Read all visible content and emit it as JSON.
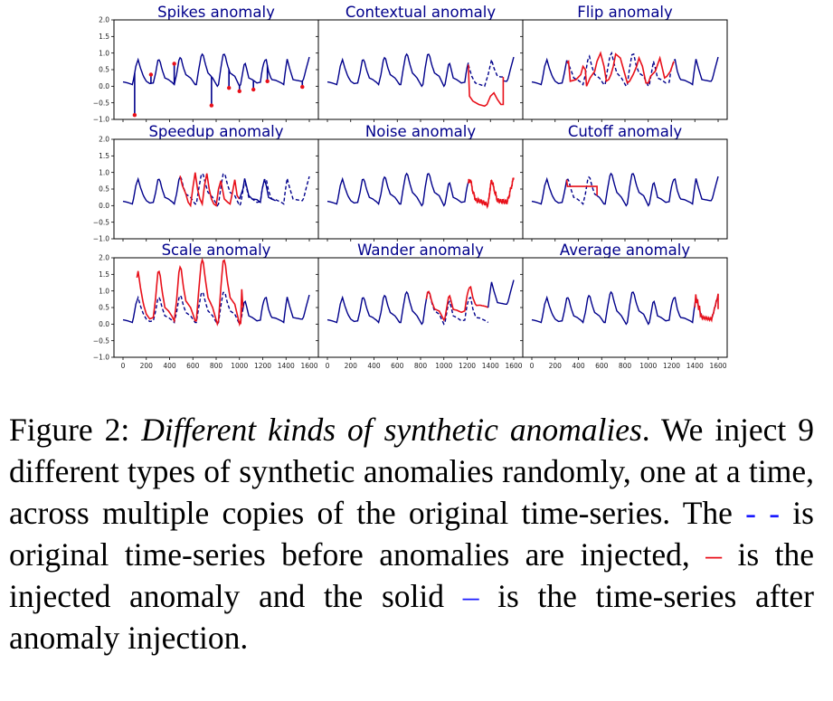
{
  "chart_data": {
    "type": "line",
    "layout": "3x3 subplot grid, shared axes",
    "xlim": [
      0,
      1600
    ],
    "ylim": [
      -1.0,
      2.0
    ],
    "xticks": [
      0,
      200,
      400,
      600,
      800,
      1000,
      1200,
      1400,
      1600
    ],
    "xtick_labels": [
      "0",
      "200",
      "400",
      "600",
      "800",
      "1000",
      "1200",
      "1400",
      "1600"
    ],
    "yticks": [
      2.0,
      1.5,
      1.0,
      0.5,
      0.0,
      -0.5,
      -1.0
    ],
    "ytick_labels": [
      "2.0",
      "1.5",
      "1.0",
      "0.5",
      "0.0",
      "−0.5",
      "−1.0"
    ],
    "grid": false,
    "colors": {
      "original_dashed": "#00008b",
      "after_injection_solid": "#00008b",
      "injected_anomaly": "#e8101a",
      "title": "#00008b"
    },
    "base_series": {
      "x": [
        0,
        40,
        80,
        90,
        110,
        130,
        150,
        175,
        200,
        230,
        260,
        280,
        300,
        315,
        335,
        360,
        390,
        420,
        440,
        460,
        480,
        495,
        515,
        540,
        580,
        620,
        630,
        650,
        670,
        685,
        705,
        730,
        770,
        810,
        820,
        840,
        860,
        875,
        895,
        920,
        960,
        1000,
        1010,
        1030,
        1045,
        1060,
        1080,
        1110,
        1150,
        1180,
        1195,
        1215,
        1230,
        1250,
        1275,
        1310,
        1360,
        1380,
        1395,
        1410,
        1430,
        1460,
        1530,
        1545,
        1575,
        1600
      ],
      "y": [
        0.13,
        0.1,
        0.05,
        0.2,
        0.6,
        0.8,
        0.55,
        0.3,
        0.15,
        0.08,
        0.1,
        0.4,
        0.78,
        0.8,
        0.5,
        0.25,
        0.2,
        0.12,
        0.05,
        0.35,
        0.78,
        0.9,
        0.6,
        0.35,
        0.25,
        0.05,
        0.05,
        0.5,
        0.9,
        1.0,
        0.7,
        0.4,
        0.25,
        0.0,
        0.05,
        0.55,
        0.95,
        0.97,
        0.65,
        0.4,
        0.3,
        0.0,
        0.05,
        0.45,
        0.75,
        0.55,
        0.25,
        0.2,
        0.1,
        0.12,
        0.5,
        0.78,
        0.8,
        0.45,
        0.2,
        0.18,
        0.1,
        0.05,
        0.5,
        0.82,
        0.55,
        0.2,
        0.15,
        0.15,
        0.55,
        0.88
      ]
    },
    "panels": [
      {
        "title": "Spikes anomaly",
        "show_yticks": true,
        "show_xticks": false,
        "spikes": [
          [
            100,
            -0.87
          ],
          [
            240,
            0.35
          ],
          [
            440,
            0.68
          ],
          [
            760,
            -0.58
          ],
          [
            910,
            -0.05
          ],
          [
            1000,
            -0.15
          ],
          [
            1120,
            -0.1
          ],
          [
            1240,
            0.15
          ],
          [
            1540,
            -0.02
          ]
        ]
      },
      {
        "title": "Contextual anomaly",
        "show_yticks": false,
        "show_xticks": false,
        "segment": [
          1210,
          1510
        ],
        "anomaly": {
          "x": [
            1210,
            1220,
            1250,
            1300,
            1350,
            1370,
            1400,
            1430,
            1460,
            1490,
            1510,
            1510
          ],
          "y": [
            0.65,
            -0.3,
            -0.45,
            -0.55,
            -0.6,
            -0.55,
            -0.3,
            -0.2,
            -0.4,
            -0.55,
            -0.55,
            0.28
          ]
        },
        "original_dashed": {
          "x": [
            1210,
            1240,
            1270,
            1310,
            1350,
            1380,
            1410,
            1430,
            1460,
            1490,
            1510
          ],
          "y": [
            0.65,
            0.3,
            0.1,
            0.05,
            0.0,
            0.35,
            0.8,
            0.55,
            0.3,
            0.28,
            0.28
          ]
        }
      },
      {
        "title": "Flip anomaly",
        "show_yticks": false,
        "show_xticks": false,
        "segment": [
          300,
          1220
        ],
        "anomaly": {
          "x": [
            300,
            315,
            330,
            380,
            420,
            440,
            460,
            470,
            500,
            540,
            560,
            590,
            620,
            640,
            660,
            680,
            700,
            720,
            760,
            800,
            820,
            840,
            870,
            900,
            920,
            950,
            980,
            1000,
            1020,
            1060,
            1100,
            1140,
            1160,
            1190,
            1220
          ],
          "y": [
            0.7,
            0.75,
            0.15,
            0.2,
            0.35,
            0.6,
            0.5,
            0.0,
            0.25,
            0.45,
            0.75,
            1.0,
            0.6,
            0.15,
            0.2,
            0.35,
            0.6,
            0.97,
            0.85,
            0.35,
            0.1,
            0.15,
            0.35,
            0.6,
            0.85,
            0.6,
            0.1,
            0.1,
            0.3,
            0.45,
            0.85,
            0.25,
            0.3,
            0.45,
            0.75
          ]
        },
        "original_dashed": {
          "x": [
            300,
            335,
            360,
            390,
            420,
            440,
            460,
            480,
            495,
            515,
            540,
            580,
            620,
            630,
            650,
            670,
            685,
            705,
            730,
            770,
            810,
            820,
            840,
            860,
            875,
            895,
            920,
            960,
            1000,
            1010,
            1030,
            1045,
            1060,
            1080,
            1110,
            1150,
            1180,
            1195,
            1220
          ],
          "y": [
            0.78,
            0.5,
            0.25,
            0.2,
            0.12,
            0.05,
            0.35,
            0.78,
            0.9,
            0.6,
            0.35,
            0.25,
            0.05,
            0.05,
            0.5,
            0.9,
            1.0,
            0.7,
            0.4,
            0.25,
            0.0,
            0.05,
            0.55,
            0.95,
            0.97,
            0.65,
            0.4,
            0.3,
            0.0,
            0.05,
            0.45,
            0.75,
            0.55,
            0.25,
            0.2,
            0.1,
            0.12,
            0.5,
            0.78
          ]
        }
      },
      {
        "title": "Speedup anomaly",
        "show_yticks": true,
        "show_xticks": false,
        "segment": [
          490,
          1060
        ],
        "anomaly": {
          "x": [
            490,
            510,
            540,
            560,
            580,
            600,
            620,
            640,
            660,
            680,
            700,
            720,
            740,
            760,
            780,
            800,
            820,
            840,
            870,
            900,
            920,
            940,
            960,
            980,
            1000
          ],
          "y": [
            0.9,
            0.6,
            0.35,
            0.1,
            0.0,
            0.55,
            1.0,
            0.5,
            0.2,
            0.05,
            0.6,
            0.97,
            0.5,
            0.2,
            0.05,
            0.0,
            0.5,
            0.75,
            0.2,
            0.1,
            0.05,
            0.4,
            0.78,
            0.3,
            0.2
          ]
        },
        "after_mod": {
          "x": [
            1000,
            1030,
            1045,
            1060,
            1080,
            1110,
            1150,
            1180,
            1195,
            1215,
            1230,
            1250,
            1275,
            1310
          ],
          "y": [
            0.2,
            0.5,
            0.82,
            0.6,
            0.3,
            0.2,
            0.18,
            0.1,
            0.5,
            0.8,
            0.6,
            0.25,
            0.2,
            0.15
          ]
        },
        "original_dashed_shift": true
      },
      {
        "title": "Noise anomaly",
        "show_yticks": false,
        "show_xticks": false,
        "segment": [
          1210,
          1600
        ],
        "noise_amplitude": 0.08
      },
      {
        "title": "Cutoff anomaly",
        "show_yticks": false,
        "show_xticks": false,
        "segment": [
          300,
          560
        ],
        "cutoff_level": 0.58
      },
      {
        "title": "Scale anomaly",
        "show_yticks": true,
        "show_xticks": true,
        "segment": [
          120,
          1030
        ],
        "scale_factor": 2.0
      },
      {
        "title": "Wander anomaly",
        "show_yticks": false,
        "show_xticks": true,
        "segment": [
          850,
          1600
        ],
        "wander": {
          "start": 850,
          "end": 1380,
          "offset_end": 0.45
        }
      },
      {
        "title": "Average anomaly",
        "show_yticks": false,
        "show_xticks": true,
        "segment": [
          1390,
          1600
        ],
        "average_window": 3
      }
    ]
  },
  "caption": {
    "figure_label": "Figure 2:",
    "title_italic": "Different kinds of synthetic anomalies",
    "text_1": ". We inject 9 different types of synthetic anomalies randomly, one at a time, across multiple copies of the original time-series. The ",
    "legend_dashed": "- -",
    "text_2": " is original time-series before anomalies are injected, ",
    "legend_red": "–",
    "text_3": " is the injected anomaly and the solid ",
    "legend_solid": "–",
    "text_4": " is the time-series after anomaly injection."
  }
}
